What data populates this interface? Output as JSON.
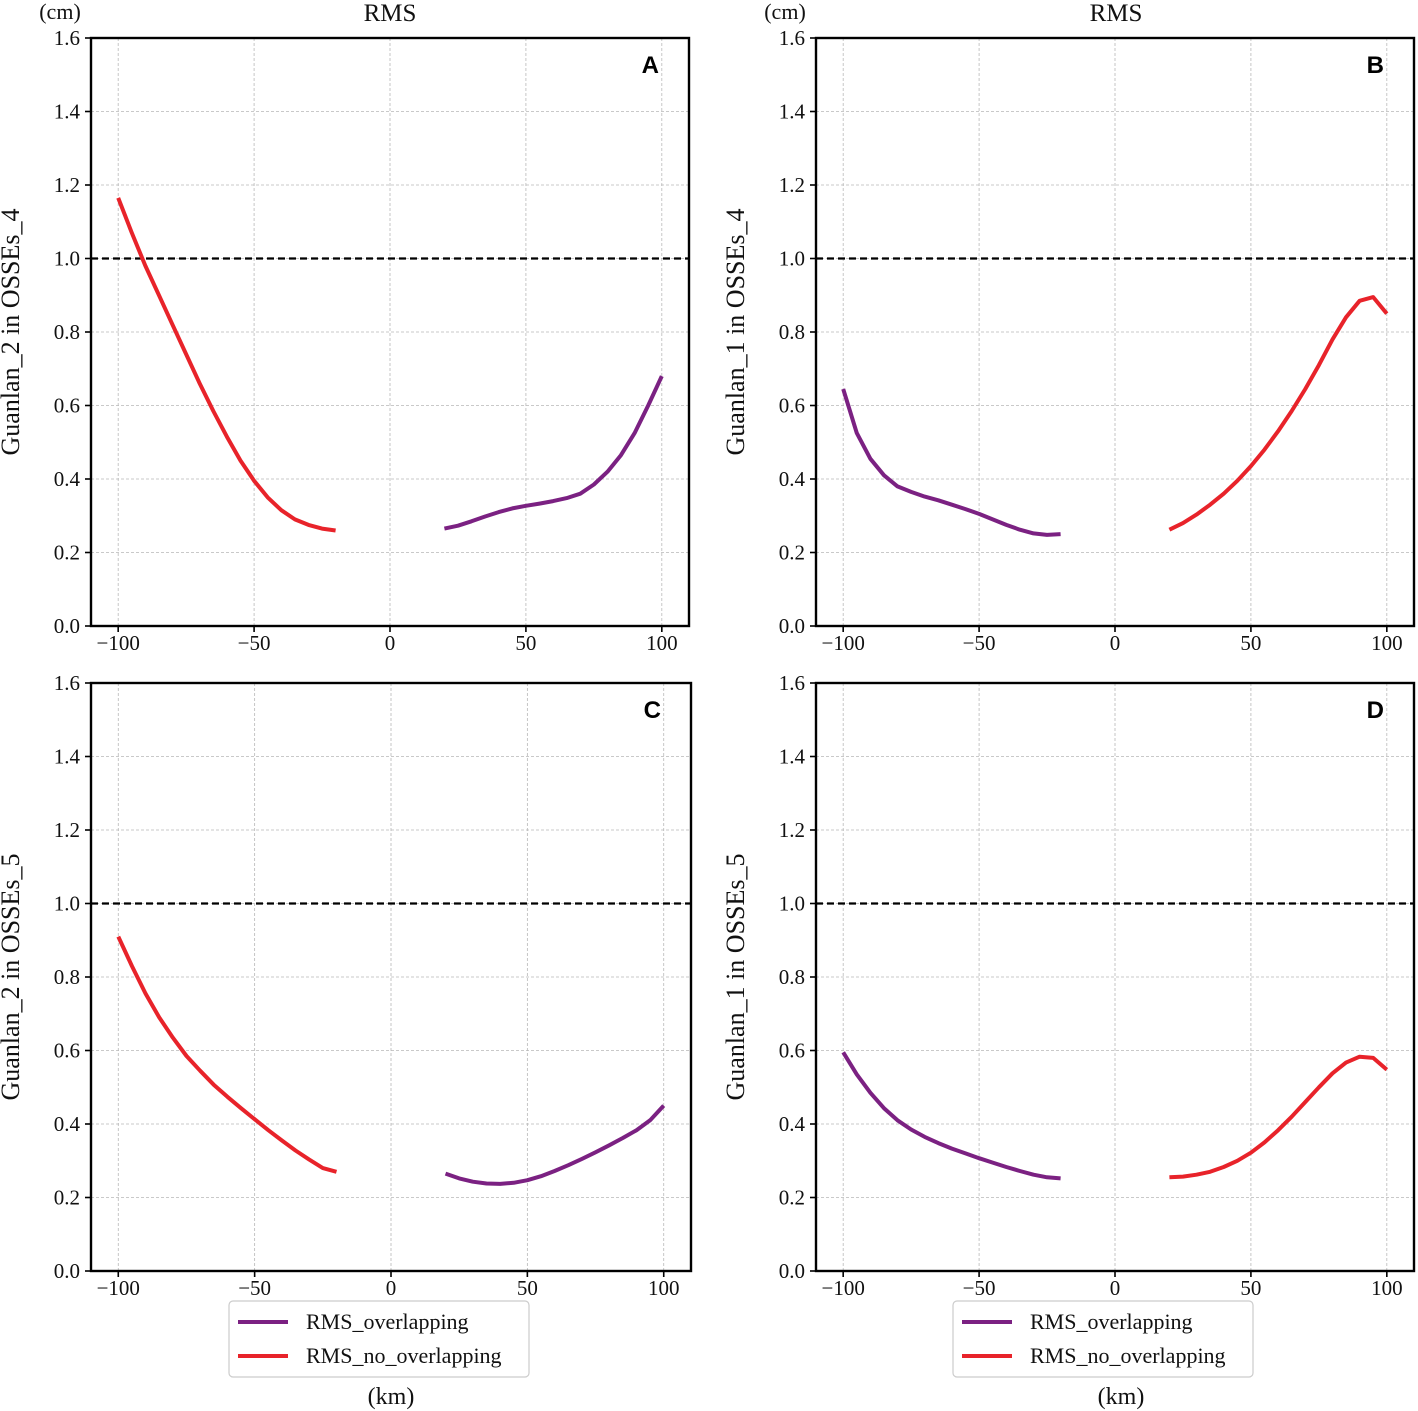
{
  "figure": {
    "column_titles": [
      "RMS",
      "RMS"
    ],
    "y_unit": "(cm)",
    "x_unit": "(km)"
  },
  "legend": {
    "overlapping_label": "RMS_overlapping",
    "no_overlapping_label": "RMS_no_overlapping"
  },
  "colors": {
    "overlapping": "#7b2182",
    "no_overlapping": "#e8232a",
    "reference_line": "#000000",
    "grid": "#b8b8b8"
  },
  "chart_data": [
    {
      "type": "line",
      "panel": "A",
      "ylabel": "Guanlan_2 in OSSEs_4",
      "xlim": [
        -110,
        110
      ],
      "ylim": [
        0,
        1.6
      ],
      "xticks": [
        -100,
        -50,
        0,
        50,
        100
      ],
      "xtick_labels": [
        "−100",
        "−50",
        "0",
        "50",
        "100"
      ],
      "yticks": [
        0,
        0.2,
        0.4,
        0.6,
        0.8,
        1.0,
        1.2,
        1.4,
        1.6
      ],
      "ytick_labels": [
        "0.0",
        "0.2",
        "0.4",
        "0.6",
        "0.8",
        "1.0",
        "1.2",
        "1.4",
        "1.6"
      ],
      "reference_y": 1.0,
      "series": [
        {
          "name": "RMS_no_overlapping",
          "x": [
            -100,
            -95,
            -90,
            -85,
            -80,
            -75,
            -70,
            -65,
            -60,
            -55,
            -50,
            -45,
            -40,
            -35,
            -30,
            -25,
            -20
          ],
          "y": [
            1.165,
            1.07,
            0.98,
            0.9,
            0.82,
            0.74,
            0.66,
            0.585,
            0.515,
            0.45,
            0.395,
            0.35,
            0.315,
            0.29,
            0.275,
            0.265,
            0.26
          ]
        },
        {
          "name": "RMS_overlapping",
          "x": [
            20,
            25,
            30,
            35,
            40,
            45,
            50,
            55,
            60,
            65,
            70,
            75,
            80,
            85,
            90,
            95,
            100
          ],
          "y": [
            0.265,
            0.273,
            0.285,
            0.298,
            0.31,
            0.32,
            0.327,
            0.333,
            0.34,
            0.348,
            0.36,
            0.385,
            0.42,
            0.465,
            0.525,
            0.6,
            0.68
          ]
        }
      ]
    },
    {
      "type": "line",
      "panel": "B",
      "ylabel": "Guanlan_1 in OSSEs_4",
      "xlim": [
        -110,
        110
      ],
      "ylim": [
        0,
        1.6
      ],
      "xticks": [
        -100,
        -50,
        0,
        50,
        100
      ],
      "xtick_labels": [
        "−100",
        "−50",
        "0",
        "50",
        "100"
      ],
      "yticks": [
        0,
        0.2,
        0.4,
        0.6,
        0.8,
        1.0,
        1.2,
        1.4,
        1.6
      ],
      "ytick_labels": [
        "0.0",
        "0.2",
        "0.4",
        "0.6",
        "0.8",
        "1.0",
        "1.2",
        "1.4",
        "1.6"
      ],
      "reference_y": 1.0,
      "series": [
        {
          "name": "RMS_overlapping",
          "x": [
            -100,
            -95,
            -90,
            -85,
            -80,
            -75,
            -70,
            -65,
            -60,
            -55,
            -50,
            -45,
            -40,
            -35,
            -30,
            -25,
            -20
          ],
          "y": [
            0.645,
            0.525,
            0.455,
            0.41,
            0.38,
            0.365,
            0.352,
            0.342,
            0.33,
            0.318,
            0.305,
            0.29,
            0.275,
            0.262,
            0.252,
            0.248,
            0.25
          ]
        },
        {
          "name": "RMS_no_overlapping",
          "x": [
            20,
            25,
            30,
            35,
            40,
            45,
            50,
            55,
            60,
            65,
            70,
            75,
            80,
            85,
            90,
            95,
            100
          ],
          "y": [
            0.262,
            0.28,
            0.303,
            0.33,
            0.36,
            0.395,
            0.435,
            0.48,
            0.53,
            0.585,
            0.645,
            0.71,
            0.78,
            0.84,
            0.885,
            0.895,
            0.85
          ]
        }
      ]
    },
    {
      "type": "line",
      "panel": "C",
      "ylabel": "Guanlan_2 in OSSEs_5",
      "xlim": [
        -110,
        110
      ],
      "ylim": [
        0,
        1.6
      ],
      "xticks": [
        -100,
        -50,
        0,
        50,
        100
      ],
      "xtick_labels": [
        "−100",
        "−50",
        "0",
        "50",
        "100"
      ],
      "yticks": [
        0,
        0.2,
        0.4,
        0.6,
        0.8,
        1.0,
        1.2,
        1.4,
        1.6
      ],
      "ytick_labels": [
        "0.0",
        "0.2",
        "0.4",
        "0.6",
        "0.8",
        "1.0",
        "1.2",
        "1.4",
        "1.6"
      ],
      "reference_y": 1.0,
      "series": [
        {
          "name": "RMS_no_overlapping",
          "x": [
            -100,
            -95,
            -90,
            -85,
            -80,
            -75,
            -70,
            -65,
            -60,
            -55,
            -50,
            -45,
            -40,
            -35,
            -30,
            -25,
            -20
          ],
          "y": [
            0.91,
            0.83,
            0.755,
            0.69,
            0.635,
            0.585,
            0.545,
            0.507,
            0.474,
            0.443,
            0.413,
            0.383,
            0.355,
            0.328,
            0.303,
            0.28,
            0.27
          ]
        },
        {
          "name": "RMS_overlapping",
          "x": [
            20,
            25,
            30,
            35,
            40,
            45,
            50,
            55,
            60,
            65,
            70,
            75,
            80,
            85,
            90,
            95,
            100
          ],
          "y": [
            0.265,
            0.252,
            0.243,
            0.238,
            0.237,
            0.24,
            0.247,
            0.258,
            0.272,
            0.288,
            0.305,
            0.323,
            0.342,
            0.362,
            0.383,
            0.41,
            0.45
          ]
        }
      ]
    },
    {
      "type": "line",
      "panel": "D",
      "ylabel": "Guanlan_1 in OSSEs_5",
      "xlim": [
        -110,
        110
      ],
      "ylim": [
        0,
        1.6
      ],
      "xticks": [
        -100,
        -50,
        0,
        50,
        100
      ],
      "xtick_labels": [
        "−100",
        "−50",
        "0",
        "50",
        "100"
      ],
      "yticks": [
        0,
        0.2,
        0.4,
        0.6,
        0.8,
        1.0,
        1.2,
        1.4,
        1.6
      ],
      "ytick_labels": [
        "0.0",
        "0.2",
        "0.4",
        "0.6",
        "0.8",
        "1.0",
        "1.2",
        "1.4",
        "1.6"
      ],
      "reference_y": 1.0,
      "series": [
        {
          "name": "RMS_overlapping",
          "x": [
            -100,
            -95,
            -90,
            -85,
            -80,
            -75,
            -70,
            -65,
            -60,
            -55,
            -50,
            -45,
            -40,
            -35,
            -30,
            -25,
            -20
          ],
          "y": [
            0.595,
            0.535,
            0.485,
            0.443,
            0.41,
            0.385,
            0.365,
            0.348,
            0.333,
            0.32,
            0.307,
            0.295,
            0.283,
            0.272,
            0.262,
            0.255,
            0.252
          ]
        },
        {
          "name": "RMS_no_overlapping",
          "x": [
            20,
            25,
            30,
            35,
            40,
            45,
            50,
            55,
            60,
            65,
            70,
            75,
            80,
            85,
            90,
            95,
            100
          ],
          "y": [
            0.255,
            0.257,
            0.262,
            0.27,
            0.283,
            0.3,
            0.322,
            0.35,
            0.383,
            0.42,
            0.46,
            0.5,
            0.538,
            0.567,
            0.583,
            0.58,
            0.548
          ]
        }
      ]
    }
  ]
}
